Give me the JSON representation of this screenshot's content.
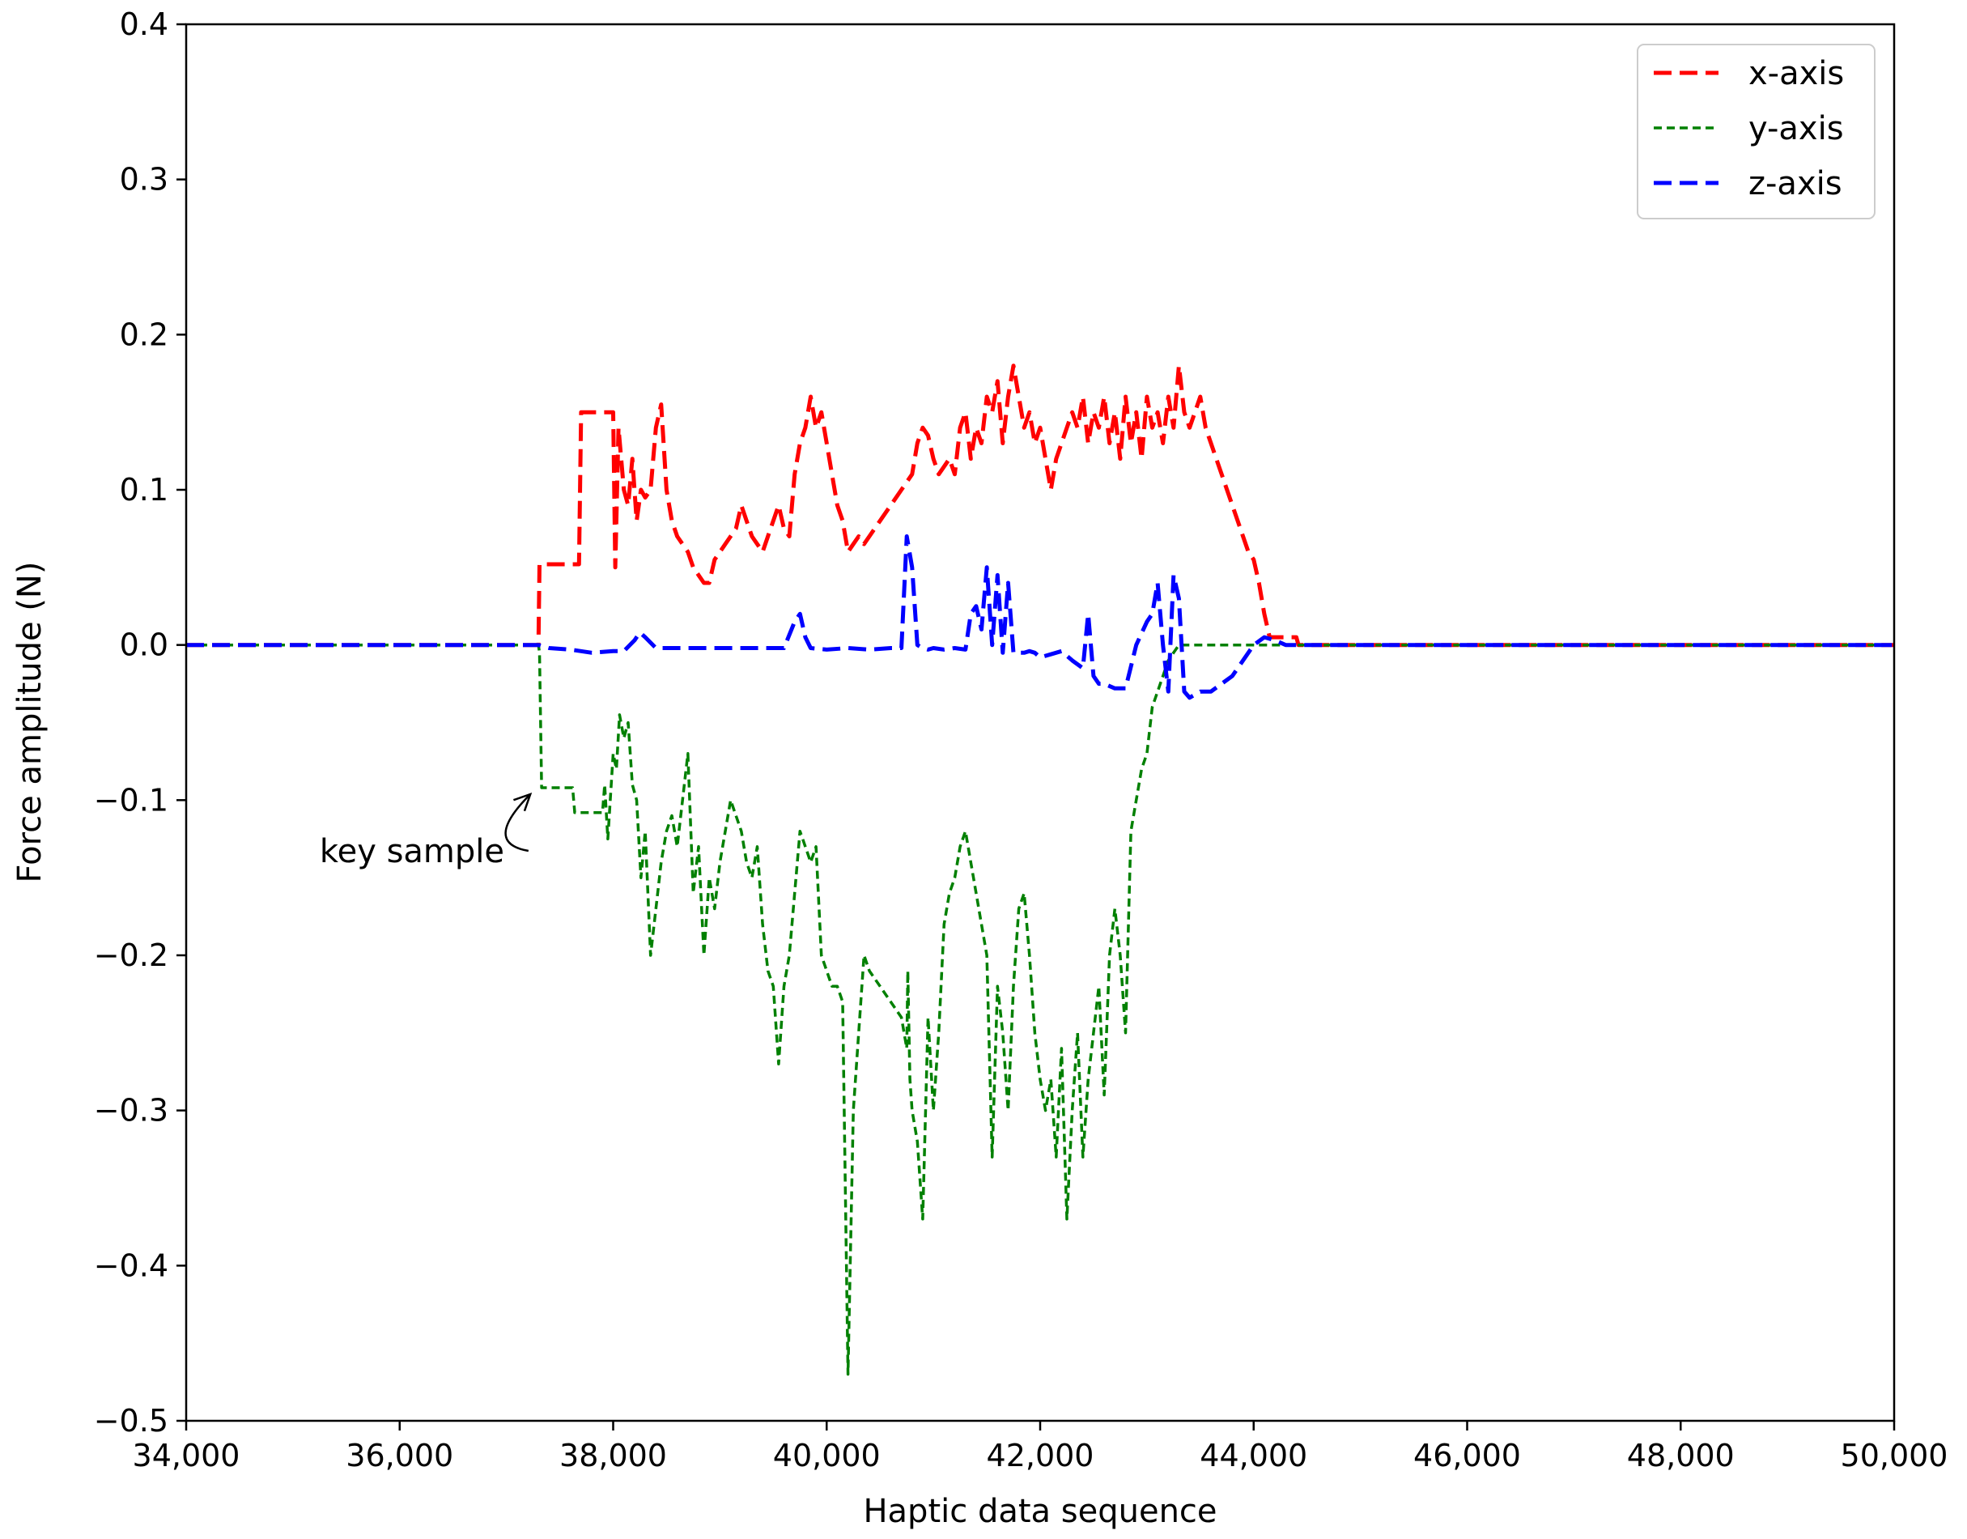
{
  "chart_data": {
    "type": "line",
    "title": "",
    "xlabel": "Haptic data sequence",
    "ylabel": "Force amplitude (N)",
    "xlim": [
      34000,
      50000
    ],
    "ylim": [
      -0.5,
      0.4
    ],
    "xticks": [
      34000,
      36000,
      38000,
      40000,
      42000,
      44000,
      46000,
      48000,
      50000
    ],
    "xtick_labels": [
      "34,000",
      "36,000",
      "38,000",
      "40,000",
      "42,000",
      "44,000",
      "46,000",
      "48,000",
      "50,000"
    ],
    "yticks": [
      0.4,
      0.3,
      0.2,
      0.1,
      0.0,
      -0.1,
      -0.2,
      -0.3,
      -0.4,
      -0.5
    ],
    "ytick_labels": [
      "0.4",
      "0.3",
      "0.2",
      "0.1",
      "0.0",
      "−0.1",
      "−0.2",
      "−0.3",
      "−0.4",
      "−0.5"
    ],
    "grid": false,
    "legend_position": "top-right",
    "annotation": {
      "text": "key sample",
      "target": [
        37300,
        -0.092
      ],
      "text_at": [
        35250,
        -0.14
      ]
    },
    "series": [
      {
        "name": "x-axis",
        "color": "#ff0000",
        "style": "dashed-long",
        "x": [
          34000,
          37300,
          37310,
          37680,
          37700,
          38000,
          38020,
          38050,
          38100,
          38140,
          38180,
          38220,
          38260,
          38300,
          38350,
          38400,
          38450,
          38500,
          38550,
          38600,
          38650,
          38700,
          38750,
          38800,
          38850,
          38900,
          38950,
          39000,
          39050,
          39100,
          39150,
          39200,
          39250,
          39300,
          39350,
          39400,
          39450,
          39500,
          39550,
          39600,
          39650,
          39700,
          39750,
          39800,
          39850,
          39900,
          39950,
          40000,
          40050,
          40100,
          40150,
          40200,
          40250,
          40300,
          40350,
          40400,
          40450,
          40500,
          40600,
          40700,
          40800,
          40850,
          40900,
          40950,
          41000,
          41050,
          41100,
          41150,
          41200,
          41250,
          41300,
          41350,
          41400,
          41450,
          41500,
          41550,
          41600,
          41650,
          41700,
          41750,
          41800,
          41850,
          41900,
          41950,
          42000,
          42050,
          42100,
          42150,
          42200,
          42250,
          42300,
          42350,
          42400,
          42450,
          42500,
          42550,
          42600,
          42650,
          42700,
          42750,
          42800,
          42850,
          42900,
          42950,
          43000,
          43050,
          43100,
          43150,
          43200,
          43250,
          43300,
          43350,
          43400,
          43450,
          43500,
          43550,
          43600,
          43650,
          43700,
          43750,
          43800,
          43850,
          43900,
          43950,
          44000,
          44050,
          44100,
          44150,
          44200,
          44400,
          44420,
          50000
        ],
        "y": [
          0.0,
          0.0,
          0.052,
          0.052,
          0.15,
          0.15,
          0.05,
          0.14,
          0.1,
          0.09,
          0.12,
          0.08,
          0.1,
          0.095,
          0.1,
          0.14,
          0.155,
          0.1,
          0.08,
          0.07,
          0.065,
          0.06,
          0.05,
          0.045,
          0.04,
          0.04,
          0.055,
          0.06,
          0.065,
          0.07,
          0.075,
          0.09,
          0.08,
          0.07,
          0.065,
          0.06,
          0.07,
          0.08,
          0.09,
          0.075,
          0.07,
          0.11,
          0.13,
          0.14,
          0.16,
          0.14,
          0.15,
          0.13,
          0.11,
          0.09,
          0.08,
          0.06,
          0.065,
          0.07,
          0.065,
          0.07,
          0.075,
          0.08,
          0.09,
          0.1,
          0.11,
          0.13,
          0.14,
          0.135,
          0.12,
          0.11,
          0.115,
          0.12,
          0.11,
          0.14,
          0.15,
          0.12,
          0.14,
          0.13,
          0.16,
          0.15,
          0.17,
          0.13,
          0.16,
          0.18,
          0.16,
          0.14,
          0.15,
          0.13,
          0.14,
          0.12,
          0.1,
          0.12,
          0.13,
          0.14,
          0.15,
          0.14,
          0.16,
          0.13,
          0.15,
          0.14,
          0.16,
          0.13,
          0.15,
          0.12,
          0.16,
          0.13,
          0.15,
          0.12,
          0.16,
          0.14,
          0.15,
          0.13,
          0.16,
          0.14,
          0.18,
          0.15,
          0.14,
          0.15,
          0.16,
          0.14,
          0.13,
          0.12,
          0.11,
          0.1,
          0.09,
          0.08,
          0.07,
          0.06,
          0.055,
          0.04,
          0.02,
          0.005,
          0.005,
          0.005,
          0.0,
          0.0
        ]
      },
      {
        "name": "y-axis",
        "color": "#008000",
        "style": "dashed-short",
        "x": [
          34000,
          37300,
          37310,
          37330,
          37620,
          37640,
          37900,
          37920,
          37950,
          38000,
          38030,
          38060,
          38100,
          38140,
          38180,
          38220,
          38260,
          38300,
          38350,
          38400,
          38450,
          38500,
          38550,
          38600,
          38650,
          38700,
          38750,
          38800,
          38850,
          38900,
          38950,
          39000,
          39050,
          39100,
          39150,
          39200,
          39250,
          39300,
          39350,
          39400,
          39450,
          39500,
          39550,
          39600,
          39650,
          39700,
          39750,
          39800,
          39850,
          39900,
          39950,
          40000,
          40050,
          40100,
          40150,
          40200,
          40250,
          40300,
          40350,
          40400,
          40500,
          40600,
          40700,
          40750,
          40760,
          40780,
          40800,
          40850,
          40900,
          40950,
          41000,
          41050,
          41100,
          41150,
          41200,
          41250,
          41300,
          41350,
          41400,
          41450,
          41500,
          41550,
          41600,
          41650,
          41700,
          41750,
          41800,
          41850,
          41900,
          41950,
          42000,
          42050,
          42100,
          42150,
          42200,
          42250,
          42300,
          42350,
          42400,
          42450,
          42500,
          42550,
          42600,
          42650,
          42700,
          42750,
          42800,
          42850,
          42900,
          42950,
          43000,
          43050,
          43100,
          43150,
          43200,
          43250,
          43300,
          43350,
          43400,
          43450,
          43500,
          43550,
          43600,
          43650,
          43700,
          43750,
          43800,
          43850,
          43900,
          43950,
          44000,
          44100,
          44200,
          44300,
          44400,
          44500,
          50000
        ],
        "y": [
          0.0,
          0.0,
          -0.005,
          -0.092,
          -0.092,
          -0.108,
          -0.108,
          -0.09,
          -0.125,
          -0.07,
          -0.08,
          -0.045,
          -0.06,
          -0.05,
          -0.09,
          -0.1,
          -0.15,
          -0.12,
          -0.2,
          -0.17,
          -0.14,
          -0.12,
          -0.11,
          -0.13,
          -0.1,
          -0.07,
          -0.16,
          -0.13,
          -0.2,
          -0.15,
          -0.17,
          -0.14,
          -0.12,
          -0.1,
          -0.11,
          -0.12,
          -0.14,
          -0.15,
          -0.13,
          -0.18,
          -0.21,
          -0.22,
          -0.27,
          -0.22,
          -0.2,
          -0.16,
          -0.12,
          -0.13,
          -0.14,
          -0.13,
          -0.2,
          -0.21,
          -0.22,
          -0.22,
          -0.23,
          -0.47,
          -0.3,
          -0.25,
          -0.2,
          -0.21,
          -0.22,
          -0.23,
          -0.24,
          -0.26,
          -0.21,
          -0.28,
          -0.3,
          -0.32,
          -0.37,
          -0.24,
          -0.3,
          -0.25,
          -0.18,
          -0.16,
          -0.15,
          -0.13,
          -0.12,
          -0.14,
          -0.16,
          -0.18,
          -0.2,
          -0.33,
          -0.22,
          -0.25,
          -0.3,
          -0.22,
          -0.17,
          -0.16,
          -0.2,
          -0.25,
          -0.28,
          -0.3,
          -0.28,
          -0.33,
          -0.26,
          -0.37,
          -0.3,
          -0.25,
          -0.33,
          -0.28,
          -0.25,
          -0.22,
          -0.29,
          -0.2,
          -0.17,
          -0.2,
          -0.25,
          -0.12,
          -0.1,
          -0.08,
          -0.07,
          -0.04,
          -0.03,
          -0.02,
          -0.01,
          -0.005,
          0.0,
          0.0,
          0.0,
          0.0,
          0.0,
          0.0,
          0.0,
          0.0,
          0.0,
          0.0,
          0.0,
          0.0,
          0.0,
          0.0,
          0.0,
          0.0,
          0.0,
          0.0,
          0.0,
          0.0,
          0.0
        ]
      },
      {
        "name": "z-axis",
        "color": "#0000ff",
        "style": "dashed-long",
        "x": [
          34000,
          37300,
          37400,
          37600,
          37800,
          38000,
          38100,
          38200,
          38250,
          38300,
          38400,
          38600,
          38800,
          39000,
          39200,
          39400,
          39600,
          39700,
          39750,
          39800,
          39850,
          40000,
          40200,
          40400,
          40600,
          40700,
          40750,
          40800,
          40850,
          40900,
          40950,
          41000,
          41100,
          41200,
          41300,
          41350,
          41400,
          41450,
          41500,
          41550,
          41600,
          41650,
          41700,
          41750,
          41800,
          41850,
          41900,
          41950,
          42000,
          42100,
          42200,
          42300,
          42400,
          42450,
          42500,
          42550,
          42600,
          42700,
          42800,
          42900,
          43000,
          43050,
          43100,
          43150,
          43200,
          43250,
          43300,
          43350,
          43400,
          43450,
          43500,
          43550,
          43600,
          43700,
          43800,
          43900,
          44000,
          44100,
          44200,
          44300,
          44400,
          44500,
          50000
        ],
        "y": [
          0.0,
          0.0,
          -0.002,
          -0.003,
          -0.005,
          -0.004,
          -0.004,
          0.003,
          0.008,
          0.005,
          -0.002,
          -0.002,
          -0.002,
          -0.002,
          -0.002,
          -0.002,
          -0.002,
          0.015,
          0.02,
          0.005,
          -0.002,
          -0.003,
          -0.002,
          -0.003,
          -0.002,
          -0.002,
          0.07,
          0.05,
          0.0,
          -0.002,
          -0.003,
          -0.002,
          -0.003,
          -0.002,
          -0.003,
          0.02,
          0.025,
          0.01,
          0.05,
          0.0,
          0.045,
          -0.005,
          0.04,
          -0.005,
          -0.005,
          -0.005,
          -0.004,
          -0.005,
          -0.008,
          -0.006,
          -0.004,
          -0.01,
          -0.015,
          0.02,
          -0.02,
          -0.025,
          -0.025,
          -0.028,
          -0.028,
          0.0,
          0.015,
          0.02,
          0.04,
          0.0,
          -0.03,
          0.045,
          0.03,
          -0.03,
          -0.034,
          -0.032,
          -0.03,
          -0.03,
          -0.03,
          -0.025,
          -0.02,
          -0.01,
          0.0,
          0.005,
          0.003,
          0.0,
          0.0,
          0.0,
          0.0
        ]
      }
    ]
  }
}
